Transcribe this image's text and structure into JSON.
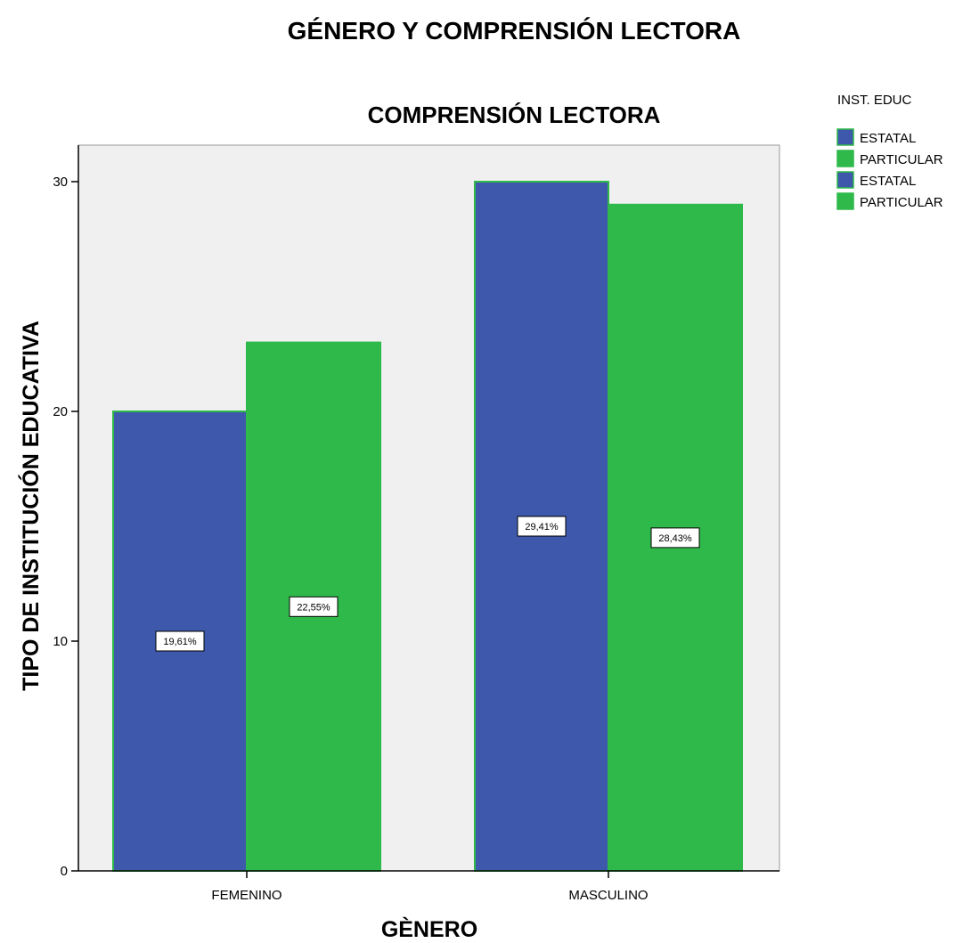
{
  "chart_data": {
    "type": "bar",
    "title": "GÉNERO Y COMPRENSIÓN LECTORA",
    "subtitle": "COMPRENSIÓN LECTORA",
    "xlabel": "GÈNERO",
    "ylabel": "TIPO DE INSTITUCIÓN EDUCATIVA",
    "categories": [
      "FEMENINO",
      "MASCULINO"
    ],
    "ylim": [
      0,
      31.5
    ],
    "yticks": [
      "0",
      "10",
      "20",
      "30"
    ],
    "grid": false,
    "legend": {
      "title": "INST. EDUC",
      "placement": "top-right outside",
      "entries": [
        {
          "label": "ESTATAL",
          "color": "#3e58ab"
        },
        {
          "label": "PARTICULAR",
          "color": "#2fb94a"
        },
        {
          "label": "ESTATAL",
          "color": "#3e58ab"
        },
        {
          "label": "PARTICULAR",
          "color": "#2fb94a"
        }
      ]
    },
    "series": [
      {
        "name": "ESTATAL",
        "color": "#3e58ab",
        "values": [
          20,
          30
        ],
        "labels": [
          "19,61%",
          "29,41%"
        ]
      },
      {
        "name": "PARTICULAR",
        "color": "#2fb94a",
        "values": [
          23,
          29
        ],
        "labels": [
          "22,55%",
          "28,43%"
        ]
      }
    ]
  }
}
